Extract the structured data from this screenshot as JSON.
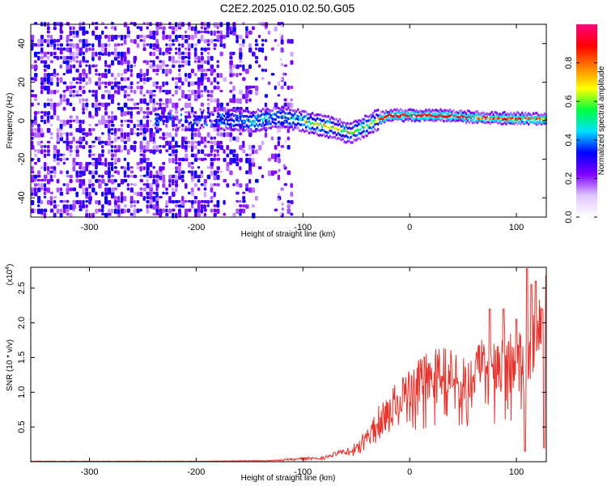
{
  "title": "C2E2.2025.010.02.50.G05",
  "chart_data": [
    {
      "type": "heatmap",
      "xlabel": "Height of straight line (km)",
      "ylabel": "Frequency (Hz)",
      "xlim": [
        -355,
        128
      ],
      "ylim": [
        -50,
        50
      ],
      "x_ticks": [
        -300,
        -200,
        -100,
        0,
        100
      ],
      "x_tick_labels": [
        "-300",
        "-200",
        "-100",
        "0",
        "100"
      ],
      "y_ticks": [
        -40,
        -20,
        0,
        20,
        40
      ],
      "y_tick_labels": [
        "-40",
        "-20",
        "0",
        "20",
        "40"
      ],
      "colorbar": {
        "label": "Normalized spectral amplitude",
        "range": [
          0,
          1
        ],
        "ticks": [
          0.0,
          0.2,
          0.4,
          0.6,
          0.8
        ],
        "tick_labels": [
          "0.0",
          "0.2",
          "0.4",
          "0.6",
          "0.8"
        ],
        "colors": [
          "#ffffff",
          "#e0c6ff",
          "#7f00ff",
          "#0000ff",
          "#00e0ff",
          "#00ff40",
          "#ffff00",
          "#ff8000",
          "#ff0000",
          "#ff0080"
        ]
      },
      "ridge_frequency": [
        {
          "x": -180,
          "f": 0
        },
        {
          "x": -150,
          "f": -1
        },
        {
          "x": -120,
          "f": 1
        },
        {
          "x": -100,
          "f": -1
        },
        {
          "x": -85,
          "f": -3
        },
        {
          "x": -70,
          "f": -5
        },
        {
          "x": -58,
          "f": -7
        },
        {
          "x": -50,
          "f": -6
        },
        {
          "x": -40,
          "f": -3
        },
        {
          "x": -30,
          "f": 0
        },
        {
          "x": -20,
          "f": 2
        },
        {
          "x": -10,
          "f": 2
        },
        {
          "x": 0,
          "f": 2
        },
        {
          "x": 30,
          "f": 2
        },
        {
          "x": 60,
          "f": 1
        },
        {
          "x": 128,
          "f": 0
        }
      ]
    },
    {
      "type": "line",
      "xlabel": "Height of straight line (km)",
      "ylabel": "SNR (10 * v/v)",
      "y_multiplier": "(x10",
      "y_multiplier_exp": "4",
      "y_multiplier_close": ")",
      "xlim": [
        -355,
        128
      ],
      "ylim": [
        0,
        2.8
      ],
      "x_ticks": [
        -300,
        -200,
        -100,
        0,
        100
      ],
      "x_tick_labels": [
        "-300",
        "-200",
        "-100",
        "0",
        "100"
      ],
      "y_ticks": [
        0.5,
        1.0,
        1.5,
        2.0,
        2.5
      ],
      "y_tick_labels": [
        "0.5",
        "1.0",
        "1.5",
        "2.0",
        "2.5"
      ],
      "series_color": "#e8332c",
      "envelope": [
        {
          "x": -355,
          "y": 0.01
        },
        {
          "x": -200,
          "y": 0.01
        },
        {
          "x": -130,
          "y": 0.02
        },
        {
          "x": -110,
          "y": 0.05
        },
        {
          "x": -80,
          "y": 0.08
        },
        {
          "x": -60,
          "y": 0.2
        },
        {
          "x": -50,
          "y": 0.3
        },
        {
          "x": -40,
          "y": 0.5
        },
        {
          "x": -30,
          "y": 0.8
        },
        {
          "x": -20,
          "y": 1.0
        },
        {
          "x": -10,
          "y": 1.2
        },
        {
          "x": 0,
          "y": 1.35
        },
        {
          "x": 10,
          "y": 1.5
        },
        {
          "x": 20,
          "y": 1.6
        },
        {
          "x": 30,
          "y": 1.7
        },
        {
          "x": 40,
          "y": 1.6
        },
        {
          "x": 50,
          "y": 1.5
        },
        {
          "x": 60,
          "y": 1.6
        },
        {
          "x": 70,
          "y": 1.8
        },
        {
          "x": 80,
          "y": 1.7
        },
        {
          "x": 90,
          "y": 1.9
        },
        {
          "x": 100,
          "y": 1.8
        },
        {
          "x": 110,
          "y": 2.1
        },
        {
          "x": 120,
          "y": 2.3
        },
        {
          "x": 128,
          "y": 2.6
        }
      ],
      "peak_spikes": [
        {
          "x": 75,
          "y": 2.2
        },
        {
          "x": 88,
          "y": 2.2
        },
        {
          "x": 100,
          "y": 2.05
        },
        {
          "x": 108,
          "y": 0.15
        },
        {
          "x": 110,
          "y": 2.78
        },
        {
          "x": 114,
          "y": 2.55
        },
        {
          "x": 118,
          "y": 2.6
        },
        {
          "x": 124,
          "y": 2.2
        },
        {
          "x": 126,
          "y": 0.2
        },
        {
          "x": 128,
          "y": 2.68
        }
      ]
    }
  ]
}
